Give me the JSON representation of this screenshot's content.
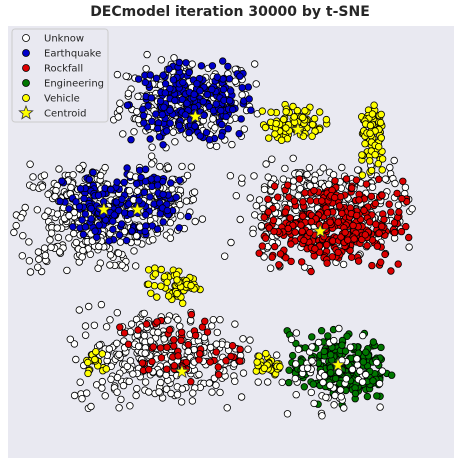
{
  "chart_data": {
    "type": "scatter",
    "title": "DECmodel iteration 30000 by t-SNE",
    "xlabel": "",
    "ylabel": "",
    "xlim": [
      -100,
      100
    ],
    "ylim": [
      -100,
      100
    ],
    "grid": false,
    "legend_position": "top-left",
    "background": "#e9e9f1",
    "series": [
      {
        "name": "Unknow",
        "marker": "circle",
        "color": "#ffffff"
      },
      {
        "name": "Earthquake",
        "marker": "circle",
        "color": "#0000cc"
      },
      {
        "name": "Rockfall",
        "marker": "circle",
        "color": "#dd0000"
      },
      {
        "name": "Engineering",
        "marker": "circle",
        "color": "#007700"
      },
      {
        "name": "Vehicle",
        "marker": "circle",
        "color": "#ffff00"
      },
      {
        "name": "Centroid",
        "marker": "star",
        "color": "#ffff00"
      }
    ],
    "clusters": [
      {
        "series": "Unknow",
        "cx": -20,
        "cy": 65,
        "rx": 30,
        "ry": 20,
        "n": 260
      },
      {
        "series": "Earthquake",
        "cx": -17,
        "cy": 64,
        "rx": 28,
        "ry": 18,
        "n": 220
      },
      {
        "series": "Unknow",
        "cx": -65,
        "cy": 12,
        "rx": 30,
        "ry": 25,
        "n": 330
      },
      {
        "series": "Earthquake",
        "cx": -55,
        "cy": 15,
        "rx": 20,
        "ry": 18,
        "n": 130
      },
      {
        "series": "Unknow",
        "cx": -30,
        "cy": 20,
        "rx": 16,
        "ry": 18,
        "n": 90
      },
      {
        "series": "Earthquake",
        "cx": -30,
        "cy": 18,
        "rx": 12,
        "ry": 15,
        "n": 50
      },
      {
        "series": "Unknow",
        "cx": 40,
        "cy": 15,
        "rx": 40,
        "ry": 25,
        "n": 320
      },
      {
        "series": "Rockfall",
        "cx": 45,
        "cy": 8,
        "rx": 32,
        "ry": 20,
        "n": 330
      },
      {
        "series": "Unknow",
        "cx": -30,
        "cy": -53,
        "rx": 40,
        "ry": 22,
        "n": 320
      },
      {
        "series": "Rockfall",
        "cx": -25,
        "cy": -50,
        "rx": 28,
        "ry": 16,
        "n": 60
      },
      {
        "series": "Vehicle",
        "cx": -25,
        "cy": -20,
        "rx": 12,
        "ry": 8,
        "n": 60
      },
      {
        "series": "Engineering",
        "cx": 48,
        "cy": -58,
        "rx": 22,
        "ry": 16,
        "n": 230
      },
      {
        "series": "Unknow",
        "cx": 45,
        "cy": -60,
        "rx": 26,
        "ry": 20,
        "n": 70
      },
      {
        "series": "Vehicle",
        "cx": 28,
        "cy": 55,
        "rx": 14,
        "ry": 8,
        "n": 80
      },
      {
        "series": "Vehicle",
        "cx": 63,
        "cy": 50,
        "rx": 6,
        "ry": 18,
        "n": 70
      },
      {
        "series": "Vehicle",
        "cx": 17,
        "cy": -57,
        "rx": 6,
        "ry": 6,
        "n": 30
      },
      {
        "series": "Vehicle",
        "cx": -60,
        "cy": -57,
        "rx": 6,
        "ry": 6,
        "n": 18
      }
    ],
    "centroids": [
      {
        "x": -16,
        "y": 58
      },
      {
        "x": -42,
        "y": 15
      },
      {
        "x": -57,
        "y": 15
      },
      {
        "x": 40,
        "y": 5
      },
      {
        "x": -22,
        "y": -60
      },
      {
        "x": 48,
        "y": -57
      },
      {
        "x": 30,
        "y": 52
      }
    ]
  }
}
